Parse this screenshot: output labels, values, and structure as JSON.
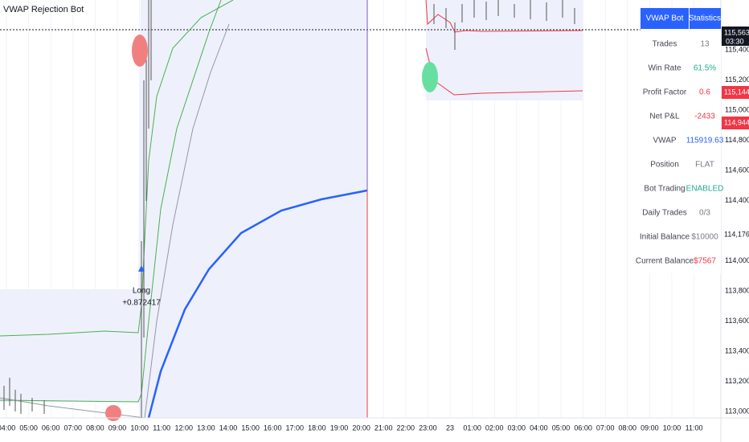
{
  "indicator_title": "VWAP Rejection Bot",
  "trade_label": {
    "side": "Long",
    "value": "+0.872417"
  },
  "stats_table": {
    "header": [
      "VWAP Bot",
      "Statistics"
    ],
    "rows": [
      {
        "label": "Trades",
        "value": "13",
        "color": "#787b86"
      },
      {
        "label": "Win Rate",
        "value": "61.5%",
        "color": "#22ab94"
      },
      {
        "label": "Profit Factor",
        "value": "0.6",
        "color": "#f23645"
      },
      {
        "label": "Net P&L",
        "value": "-2433",
        "color": "#f23645"
      },
      {
        "label": "VWAP",
        "value": "115919.63",
        "color": "#2962ff"
      },
      {
        "label": "Position",
        "value": "FLAT",
        "color": "#787b86"
      },
      {
        "label": "Bot Trading",
        "value": "ENABLED",
        "color": "#22ab94"
      },
      {
        "label": "Daily Trades",
        "value": "0/3",
        "color": "#787b86"
      },
      {
        "label": "Initial Balance",
        "value": "$10000",
        "color": "#787b86"
      },
      {
        "label": "Current Balance",
        "value": "$7567",
        "color": "#f23645"
      }
    ]
  },
  "price_axis": {
    "labels": [
      "115,400",
      "115,200",
      "115,000",
      "114,800",
      "114,600",
      "114,400",
      "114,000",
      "113,800",
      "113,600",
      "113,400",
      "113,200",
      "113,000"
    ],
    "tags": [
      {
        "text": "115,563",
        "sub": "03:30",
        "color": "#131722"
      },
      {
        "text": "115,144",
        "color": "#f23645"
      },
      {
        "text": "114,944",
        "color": "#f23645"
      },
      {
        "text": "114,176",
        "color": "#ffffff"
      }
    ]
  },
  "time_axis": {
    "labels": [
      "04:00",
      "05:00",
      "06:00",
      "07:00",
      "08:00",
      "09:00",
      "10:00",
      "11:00",
      "12:00",
      "13:00",
      "14:00",
      "15:00",
      "16:00",
      "17:00",
      "18:00",
      "19:00",
      "20:00",
      "21:00",
      "22:00",
      "23:00",
      "23",
      "01:00",
      "02:00",
      "03:00",
      "04:00",
      "05:00",
      "06:00",
      "07:00",
      "08:00",
      "09:00",
      "10:00",
      "11:00"
    ]
  }
}
